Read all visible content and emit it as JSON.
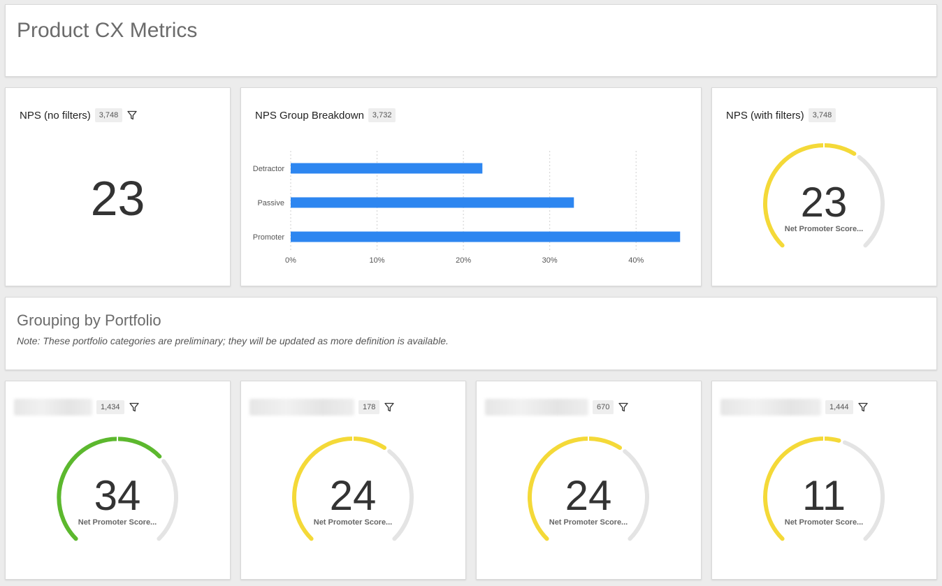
{
  "header": {
    "title": "Product CX Metrics"
  },
  "nps_no_filters": {
    "title": "NPS (no filters)",
    "count": "3,748",
    "value": "23"
  },
  "nps_breakdown": {
    "title": "NPS Group Breakdown",
    "count": "3,732"
  },
  "nps_with_filters": {
    "title": "NPS (with filters)",
    "count": "3,748",
    "value": "23",
    "label": "Net Promoter Score...",
    "score": 23
  },
  "section": {
    "title": "Grouping by Portfolio",
    "note": "Note: These portfolio categories are preliminary; they will be updated as more definition is available."
  },
  "portfolio": [
    {
      "count": "1,434",
      "value": "34",
      "label": "Net Promoter Score...",
      "score": 34,
      "color": "#5cb82e"
    },
    {
      "count": "178",
      "value": "24",
      "label": "Net Promoter Score...",
      "score": 24,
      "color": "#f4d938"
    },
    {
      "count": "670",
      "value": "24",
      "label": "Net Promoter Score...",
      "score": 24,
      "color": "#f4d938"
    },
    {
      "count": "1,444",
      "value": "11",
      "label": "Net Promoter Score...",
      "score": 11,
      "color": "#f4d938"
    }
  ],
  "colors": {
    "accent_bar": "#2d86f0",
    "gauge_yellow": "#f4d938",
    "gauge_green": "#5cb82e",
    "gauge_track": "#e4e4e4"
  },
  "chart_data": {
    "type": "bar",
    "orientation": "horizontal",
    "categories": [
      "Detractor",
      "Passive",
      "Promoter"
    ],
    "values": [
      22.2,
      32.8,
      45.1
    ],
    "xlim": [
      0,
      45
    ],
    "xticks": [
      "0%",
      "10%",
      "20%",
      "30%",
      "40%"
    ],
    "grid": true
  }
}
